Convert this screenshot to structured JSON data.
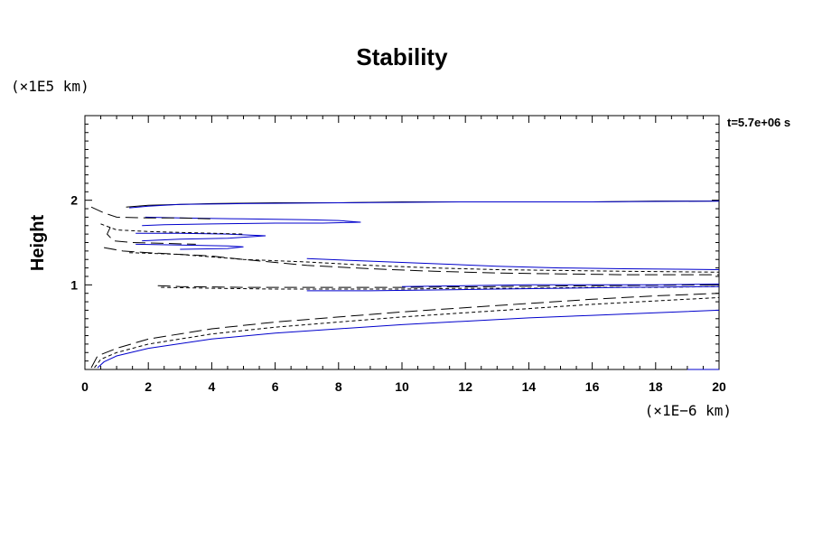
{
  "chart_data": {
    "type": "line",
    "title": "Stability",
    "ylabel": "Height",
    "y_multiplier": "(×1E5 km)",
    "x_multiplier": "(×1E−6 km)",
    "time_label": "t=5.7e+06 s",
    "xlim": [
      0,
      20
    ],
    "ylim": [
      0,
      3
    ],
    "x_ticks": [
      0,
      2,
      4,
      6,
      8,
      10,
      12,
      14,
      16,
      18,
      20
    ],
    "y_ticks": [
      1,
      2
    ],
    "grid": false,
    "series": [
      {
        "style": "solid",
        "color": "#0000cc",
        "points": [
          [
            0.4,
            0.02
          ],
          [
            0.6,
            0.09
          ],
          [
            1,
            0.16
          ],
          [
            2,
            0.25
          ],
          [
            4,
            0.36
          ],
          [
            6,
            0.43
          ],
          [
            8,
            0.48
          ],
          [
            10,
            0.53
          ],
          [
            12,
            0.57
          ],
          [
            14,
            0.61
          ],
          [
            16,
            0.64
          ],
          [
            18,
            0.67
          ],
          [
            20,
            0.7
          ]
        ]
      },
      {
        "style": "short-dash",
        "color": "#000000",
        "points": [
          [
            0.3,
            0.02
          ],
          [
            0.5,
            0.12
          ],
          [
            1,
            0.2
          ],
          [
            2,
            0.3
          ],
          [
            4,
            0.42
          ],
          [
            6,
            0.5
          ],
          [
            8,
            0.56
          ],
          [
            10,
            0.62
          ],
          [
            12,
            0.67
          ],
          [
            14,
            0.72
          ],
          [
            16,
            0.77
          ],
          [
            18,
            0.81
          ],
          [
            20,
            0.85
          ]
        ]
      },
      {
        "style": "long-dash",
        "color": "#000000",
        "points": [
          [
            0.2,
            0.02
          ],
          [
            0.4,
            0.16
          ],
          [
            1,
            0.25
          ],
          [
            2,
            0.36
          ],
          [
            4,
            0.48
          ],
          [
            6,
            0.56
          ],
          [
            8,
            0.62
          ],
          [
            10,
            0.68
          ],
          [
            12,
            0.73
          ],
          [
            14,
            0.78
          ],
          [
            16,
            0.83
          ],
          [
            18,
            0.87
          ],
          [
            20,
            0.9
          ]
        ]
      },
      {
        "style": "solid",
        "color": "#000000",
        "points": [
          [
            1.3,
            1.92
          ],
          [
            2,
            1.94
          ],
          [
            4,
            1.96
          ],
          [
            6,
            1.97
          ],
          [
            8,
            1.97
          ],
          [
            10,
            1.98
          ],
          [
            12,
            1.98
          ],
          [
            14,
            1.98
          ],
          [
            16,
            1.98
          ],
          [
            18,
            1.99
          ],
          [
            20,
            1.99
          ]
        ]
      },
      {
        "style": "solid",
        "color": "#0000cc",
        "points": [
          [
            1.4,
            1.91
          ],
          [
            2,
            1.93
          ],
          [
            3,
            1.95
          ],
          [
            5,
            1.96
          ],
          [
            8,
            1.97
          ],
          [
            12,
            1.98
          ],
          [
            16,
            1.98
          ],
          [
            20,
            1.99
          ]
        ]
      },
      {
        "style": "solid",
        "color": "#0000cc",
        "points": [
          [
            1.9,
            1.8
          ],
          [
            3,
            1.79
          ],
          [
            5,
            1.78
          ],
          [
            7,
            1.77
          ],
          [
            8,
            1.76
          ],
          [
            8.7,
            1.74
          ],
          [
            7.5,
            1.73
          ],
          [
            6,
            1.73
          ],
          [
            4,
            1.72
          ],
          [
            2.5,
            1.71
          ],
          [
            1.8,
            1.7
          ]
        ]
      },
      {
        "style": "long-dash",
        "color": "#000000",
        "points": [
          [
            0.2,
            1.92
          ],
          [
            0.6,
            1.85
          ],
          [
            1,
            1.8
          ],
          [
            2,
            1.79
          ],
          [
            3,
            1.79
          ],
          [
            4,
            1.78
          ]
        ]
      },
      {
        "style": "solid",
        "color": "#0000cc",
        "points": [
          [
            1.6,
            1.61
          ],
          [
            3,
            1.61
          ],
          [
            4.5,
            1.6
          ],
          [
            5.7,
            1.58
          ],
          [
            4.5,
            1.55
          ],
          [
            3,
            1.54
          ],
          [
            1.8,
            1.52
          ]
        ]
      },
      {
        "style": "short-dash",
        "color": "#000000",
        "points": [
          [
            0.5,
            1.72
          ],
          [
            1,
            1.65
          ],
          [
            2,
            1.63
          ],
          [
            3,
            1.62
          ],
          [
            4,
            1.61
          ],
          [
            5,
            1.6
          ]
        ]
      },
      {
        "style": "long-dash",
        "color": "#000000",
        "points": [
          [
            0.8,
            1.68
          ],
          [
            0.7,
            1.6
          ],
          [
            0.9,
            1.52
          ],
          [
            1.5,
            1.5
          ],
          [
            2.5,
            1.49
          ],
          [
            3.5,
            1.48
          ]
        ]
      },
      {
        "style": "solid",
        "color": "#0000cc",
        "points": [
          [
            1.6,
            1.48
          ],
          [
            3,
            1.47
          ],
          [
            4.5,
            1.46
          ],
          [
            5,
            1.45
          ],
          [
            4.5,
            1.43
          ],
          [
            3,
            1.42
          ]
        ]
      },
      {
        "style": "long-dash",
        "color": "#000000",
        "points": [
          [
            0.6,
            1.44
          ],
          [
            1.2,
            1.4
          ],
          [
            2,
            1.38
          ],
          [
            3,
            1.36
          ],
          [
            4,
            1.34
          ],
          [
            5,
            1.3
          ],
          [
            7,
            1.23
          ],
          [
            9,
            1.19
          ],
          [
            11,
            1.16
          ],
          [
            13,
            1.14
          ],
          [
            15,
            1.13
          ],
          [
            17,
            1.12
          ],
          [
            20,
            1.12
          ]
        ]
      },
      {
        "style": "short-dash",
        "color": "#000000",
        "points": [
          [
            1.4,
            1.38
          ],
          [
            3,
            1.36
          ],
          [
            5,
            1.3
          ],
          [
            7,
            1.27
          ],
          [
            9,
            1.23
          ],
          [
            11,
            1.2
          ],
          [
            13,
            1.18
          ],
          [
            15,
            1.17
          ],
          [
            17,
            1.16
          ],
          [
            20,
            1.15
          ]
        ]
      },
      {
        "style": "solid",
        "color": "#0000cc",
        "points": [
          [
            7,
            1.31
          ],
          [
            9,
            1.28
          ],
          [
            11,
            1.25
          ],
          [
            13,
            1.22
          ],
          [
            15,
            1.2
          ],
          [
            17,
            1.19
          ],
          [
            20,
            1.18
          ]
        ]
      },
      {
        "style": "long-dash",
        "color": "#000000",
        "points": [
          [
            2.3,
            0.99
          ],
          [
            3,
            0.98
          ],
          [
            5,
            0.97
          ],
          [
            7,
            0.97
          ],
          [
            10,
            0.97
          ],
          [
            13,
            0.98
          ],
          [
            16,
            0.99
          ],
          [
            20,
            1.0
          ]
        ]
      },
      {
        "style": "short-dash",
        "color": "#000000",
        "points": [
          [
            2.4,
            0.97
          ],
          [
            4,
            0.96
          ],
          [
            6,
            0.95
          ],
          [
            8,
            0.95
          ],
          [
            10,
            0.95
          ],
          [
            12,
            0.96
          ],
          [
            14,
            0.96
          ],
          [
            16,
            0.97
          ],
          [
            18,
            0.97
          ],
          [
            20,
            0.98
          ]
        ]
      },
      {
        "style": "solid",
        "color": "#0000cc",
        "points": [
          [
            7,
            0.93
          ],
          [
            9,
            0.93
          ],
          [
            11,
            0.94
          ],
          [
            13,
            0.95
          ],
          [
            15,
            0.96
          ],
          [
            17,
            0.97
          ],
          [
            20,
            0.98
          ]
        ]
      },
      {
        "style": "solid",
        "color": "#0000cc",
        "points": [
          [
            10,
            0.98
          ],
          [
            12,
            0.99
          ],
          [
            14,
            1.0
          ],
          [
            16,
            1.0
          ],
          [
            18,
            1.0
          ],
          [
            20,
            1.01
          ]
        ]
      },
      {
        "style": "solid",
        "color": "#0000cc",
        "points": [
          [
            19,
            0.0
          ],
          [
            20,
            0.0
          ]
        ]
      }
    ]
  }
}
